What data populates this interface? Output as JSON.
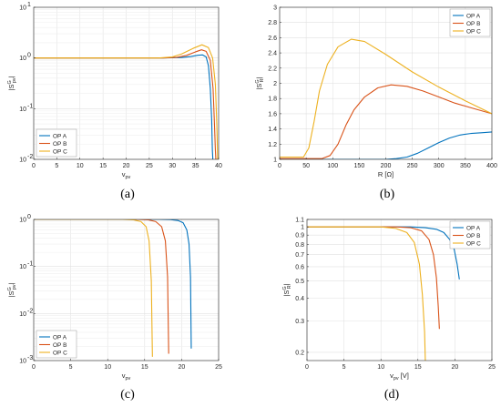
{
  "colors": {
    "OP A": "#0072BD",
    "OP B": "#D95319",
    "OP C": "#EDB120"
  },
  "chart_data": [
    {
      "panel_label": "(a)",
      "type": "line",
      "xlabel": "v",
      "xlabel_sub": "pv",
      "ylabel_base": "|S",
      "ylabel_sup": "G",
      "ylabel_sub": "pv",
      "ylabel_end": "|",
      "yscale": "log",
      "xlim": [
        0,
        40
      ],
      "ylim": [
        0.01,
        10
      ],
      "xticks": [
        0,
        5,
        10,
        15,
        20,
        25,
        30,
        35,
        40
      ],
      "yticks": [
        {
          "v": 0.01,
          "base": "10",
          "exp": "-2"
        },
        {
          "v": 0.1,
          "base": "10",
          "exp": "-1"
        },
        {
          "v": 1,
          "base": "10",
          "exp": "0"
        },
        {
          "v": 10,
          "base": "10",
          "exp": "1"
        }
      ],
      "grid": true,
      "legend": "lower-left",
      "series": [
        {
          "name": "OP A",
          "x": [
            0,
            28,
            32,
            34,
            35.5,
            36.5,
            37.3,
            37.8,
            38.2,
            38.5,
            38.65,
            38.75
          ],
          "y": [
            1,
            1,
            1.02,
            1.07,
            1.13,
            1.15,
            1.05,
            0.7,
            0.25,
            0.06,
            0.015,
            0.01
          ]
        },
        {
          "name": "OP B",
          "x": [
            0,
            28,
            31,
            33,
            35,
            36.3,
            37.3,
            38.2,
            38.8,
            39.1,
            39.3,
            39.4
          ],
          "y": [
            1,
            1,
            1.03,
            1.12,
            1.32,
            1.45,
            1.35,
            0.9,
            0.25,
            0.05,
            0.015,
            0.01
          ]
        },
        {
          "name": "OP C",
          "x": [
            0,
            27,
            30,
            32,
            34.5,
            36.4,
            37.8,
            38.7,
            39.3,
            39.6,
            39.8
          ],
          "y": [
            1,
            1,
            1.05,
            1.2,
            1.55,
            1.82,
            1.6,
            1.0,
            0.3,
            0.05,
            0.01
          ]
        }
      ]
    },
    {
      "panel_label": "(b)",
      "type": "line",
      "xlabel": "R [Ω]",
      "ylabel_base": "|S",
      "ylabel_sup": "G",
      "ylabel_sub": "R",
      "ylabel_end": "|",
      "yscale": "linear",
      "xlim": [
        0,
        400
      ],
      "ylim": [
        1,
        3
      ],
      "xticks": [
        0,
        50,
        100,
        150,
        200,
        250,
        300,
        350,
        400
      ],
      "ytick_values": [
        1,
        1.2,
        1.4,
        1.6,
        1.8,
        2,
        2.2,
        2.4,
        2.6,
        2.8,
        3
      ],
      "ytick_labels": [
        "1",
        "1.2",
        "1.4",
        "1.6",
        "1.8",
        "2",
        "2.2",
        "2.4",
        "2.6",
        "2.8",
        "3"
      ],
      "grid": true,
      "legend": "top-right",
      "series": [
        {
          "name": "OP A",
          "x": [
            0,
            200,
            220,
            240,
            260,
            280,
            300,
            320,
            340,
            360,
            380,
            400
          ],
          "y": [
            1,
            1,
            1.01,
            1.03,
            1.08,
            1.15,
            1.22,
            1.28,
            1.32,
            1.34,
            1.35,
            1.36
          ]
        },
        {
          "name": "OP B",
          "x": [
            0,
            80,
            95,
            110,
            125,
            140,
            160,
            185,
            210,
            240,
            270,
            300,
            330,
            360,
            400
          ],
          "y": [
            1.01,
            1.01,
            1.05,
            1.2,
            1.45,
            1.65,
            1.82,
            1.94,
            1.98,
            1.96,
            1.9,
            1.82,
            1.74,
            1.68,
            1.6
          ]
        },
        {
          "name": "OP C",
          "x": [
            0,
            45,
            55,
            65,
            75,
            90,
            110,
            135,
            160,
            200,
            250,
            300,
            350,
            400
          ],
          "y": [
            1.03,
            1.03,
            1.15,
            1.5,
            1.9,
            2.25,
            2.48,
            2.58,
            2.55,
            2.38,
            2.15,
            1.95,
            1.77,
            1.6
          ]
        }
      ]
    },
    {
      "panel_label": "(c)",
      "type": "line",
      "xlabel": "v",
      "xlabel_sub": "pv",
      "ylabel_base": "|S",
      "ylabel_sup": "G",
      "ylabel_sub": "pv",
      "ylabel_end": "|",
      "yscale": "log",
      "xlim": [
        0,
        25
      ],
      "ylim": [
        0.001,
        1
      ],
      "xticks": [
        0,
        5,
        10,
        15,
        20,
        25
      ],
      "yticks": [
        {
          "v": 0.001,
          "base": "10",
          "exp": "-3"
        },
        {
          "v": 0.01,
          "base": "10",
          "exp": "-2"
        },
        {
          "v": 0.1,
          "base": "10",
          "exp": "-1"
        },
        {
          "v": 1,
          "base": "10",
          "exp": "0"
        }
      ],
      "grid": true,
      "legend": "lower-left",
      "series": [
        {
          "name": "OP A",
          "x": [
            0,
            17,
            18.5,
            19.5,
            20.2,
            20.7,
            21,
            21.2,
            21.3
          ],
          "y": [
            1,
            1,
            0.99,
            0.95,
            0.85,
            0.6,
            0.3,
            0.06,
            0.0018
          ]
        },
        {
          "name": "OP B",
          "x": [
            0,
            14,
            15.5,
            16.5,
            17.3,
            17.8,
            18.1,
            18.25
          ],
          "y": [
            1,
            1,
            0.98,
            0.9,
            0.7,
            0.35,
            0.06,
            0.0014
          ]
        },
        {
          "name": "OP C",
          "x": [
            0,
            12,
            13.5,
            14.5,
            15.2,
            15.6,
            15.9,
            16.05
          ],
          "y": [
            1,
            1,
            0.98,
            0.9,
            0.7,
            0.35,
            0.05,
            0.0012
          ]
        }
      ]
    },
    {
      "panel_label": "(d)",
      "type": "line",
      "xlabel": "v",
      "xlabel_sub": "pv",
      "xlabel_end": " [V]",
      "ylabel_base": "|S",
      "ylabel_sup": "G",
      "ylabel_sub": "R",
      "ylabel_end": "|",
      "yscale": "log",
      "xlim": [
        0,
        25
      ],
      "ylim": [
        0.18,
        1.1
      ],
      "xticks": [
        0,
        5,
        10,
        15,
        20,
        25
      ],
      "ytick_values": [
        0.2,
        0.3,
        0.4,
        0.5,
        0.6,
        0.7,
        0.8,
        0.9,
        1,
        1.1
      ],
      "ytick_labels": [
        "0.2",
        "0.3",
        "0.4",
        "0.5",
        "0.6",
        "0.7",
        "0.8",
        "0.9",
        "1",
        "1.1"
      ],
      "grid": true,
      "legend": "top-right",
      "series": [
        {
          "name": "OP A",
          "x": [
            0,
            14,
            16,
            17.5,
            18.5,
            19.3,
            19.9,
            20.3,
            20.6
          ],
          "y": [
            1,
            1,
            0.99,
            0.97,
            0.93,
            0.85,
            0.75,
            0.62,
            0.51
          ]
        },
        {
          "name": "OP B",
          "x": [
            0,
            12,
            14,
            15.5,
            16.5,
            17.1,
            17.5,
            17.75,
            17.9
          ],
          "y": [
            1,
            1,
            0.99,
            0.95,
            0.85,
            0.7,
            0.52,
            0.36,
            0.27
          ]
        },
        {
          "name": "OP C",
          "x": [
            0,
            10,
            12,
            13.5,
            14.5,
            15.2,
            15.6,
            15.9,
            16
          ],
          "y": [
            1,
            1,
            0.98,
            0.93,
            0.82,
            0.62,
            0.42,
            0.26,
            0.18
          ]
        }
      ]
    }
  ]
}
